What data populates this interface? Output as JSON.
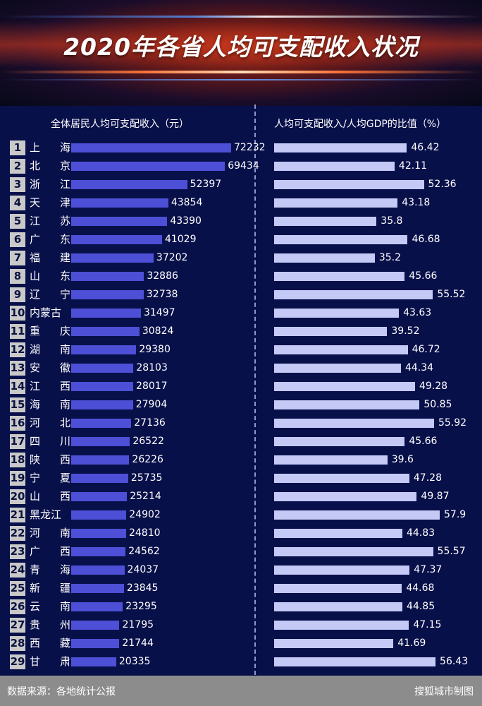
{
  "title": "2020年各省人均可支配收入状况",
  "source": "数据来源：各地统计公报",
  "credit": "搜狐城市制图",
  "colors": {
    "income_bar": "#4d4fd6",
    "ratio_bar": "#c4c9f6",
    "background": "#08104a"
  },
  "chart_data": [
    {
      "type": "bar",
      "orientation": "horizontal",
      "title": "全体居民人均可支配收入（元）",
      "categories": [
        "上海",
        "北京",
        "浙江",
        "天津",
        "江苏",
        "广东",
        "福建",
        "山东",
        "辽宁",
        "内蒙古",
        "重庆",
        "湖南",
        "安徽",
        "江西",
        "海南",
        "河北",
        "四川",
        "陕西",
        "宁夏",
        "山西",
        "黑龙江",
        "河南",
        "广西",
        "青海",
        "新疆",
        "云南",
        "贵州",
        "西藏",
        "甘肃"
      ],
      "ranks": [
        "1",
        "2",
        "3",
        "4",
        "5",
        "6",
        "7",
        "8",
        "9",
        "10",
        "11",
        "12",
        "13",
        "14",
        "15",
        "16",
        "17",
        "18",
        "19",
        "20",
        "21",
        "22",
        "23",
        "24",
        "25",
        "26",
        "27",
        "28",
        "29"
      ],
      "values": [
        72232,
        69434,
        52397,
        43854,
        43390,
        41029,
        37202,
        32886,
        32738,
        31497,
        30824,
        29380,
        28103,
        28017,
        27904,
        27136,
        26522,
        26226,
        25735,
        25214,
        24902,
        24810,
        24562,
        24037,
        23845,
        23295,
        21795,
        21744,
        20335
      ],
      "xlim": [
        0,
        80000
      ]
    },
    {
      "type": "bar",
      "orientation": "horizontal",
      "title": "人均可支配收入/人均GDP的比值（%）",
      "categories": [
        "上海",
        "北京",
        "浙江",
        "天津",
        "江苏",
        "广东",
        "福建",
        "山东",
        "辽宁",
        "内蒙古",
        "重庆",
        "湖南",
        "安徽",
        "江西",
        "海南",
        "河北",
        "四川",
        "陕西",
        "宁夏",
        "山西",
        "黑龙江",
        "河南",
        "广西",
        "青海",
        "新疆",
        "云南",
        "贵州",
        "西藏",
        "甘肃"
      ],
      "values": [
        46.42,
        42.11,
        52.36,
        43.18,
        35.8,
        46.68,
        35.2,
        45.66,
        55.52,
        43.63,
        39.52,
        46.72,
        44.34,
        49.28,
        50.85,
        55.92,
        45.66,
        39.6,
        47.28,
        49.87,
        57.9,
        44.83,
        55.57,
        47.37,
        44.68,
        44.85,
        47.15,
        41.69,
        56.43
      ],
      "xlim": [
        0,
        73
      ]
    }
  ]
}
